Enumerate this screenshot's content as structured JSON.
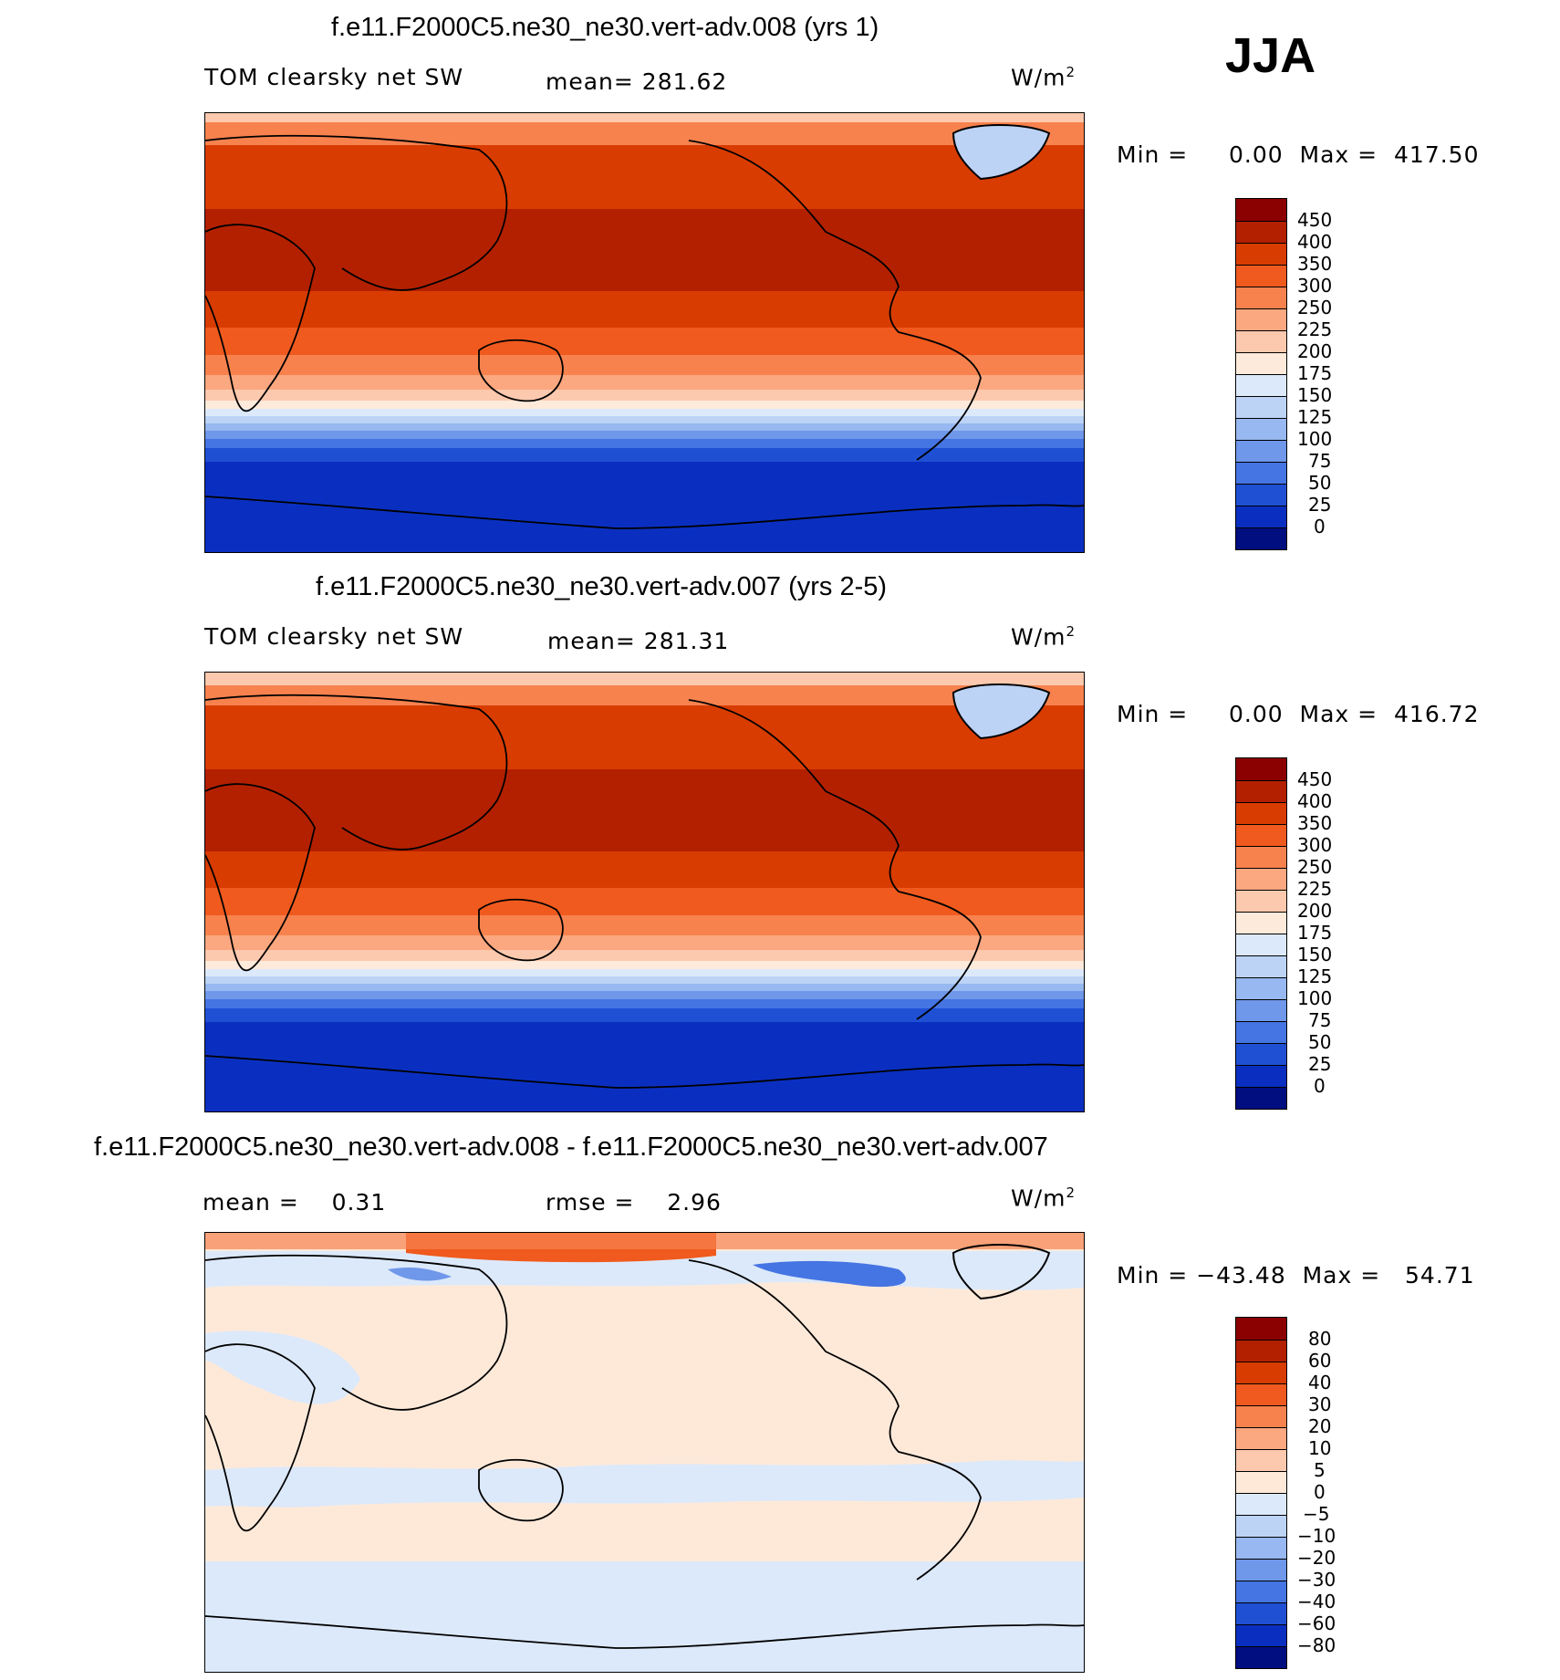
{
  "season": "JJA",
  "panels": [
    {
      "title": "f.e11.F2000C5.ne30_ne30.vert-adv.008 (yrs 1)",
      "variable": "TOM clearsky net SW",
      "stat1": "mean= 281.62",
      "stat2": "",
      "units_base": "W/m",
      "units_exp": "2",
      "minmax": "Min =     0.00  Max =  417.50",
      "colorbar": {
        "levels": [
          "450",
          "400",
          "350",
          "300",
          "250",
          "225",
          "200",
          "175",
          "150",
          "125",
          "100",
          "75",
          "50",
          "25",
          "0"
        ],
        "colors": [
          "#8b0000",
          "#b32000",
          "#d93c00",
          "#f05a1e",
          "#f7824e",
          "#fba77f",
          "#fdc9ae",
          "#feeadb",
          "#dce9fa",
          "#bcd3f6",
          "#97b8f0",
          "#6f97ea",
          "#4574e3",
          "#1f50d4",
          "#0a2fc0",
          "#061c96",
          "#000e80"
        ]
      }
    },
    {
      "title": "f.e11.F2000C5.ne30_ne30.vert-adv.007 (yrs 2-5)",
      "variable": "TOM clearsky net SW",
      "stat1": "mean= 281.31",
      "stat2": "",
      "units_base": "W/m",
      "units_exp": "2",
      "minmax": "Min =     0.00  Max =  416.72",
      "colorbar": {
        "levels": [
          "450",
          "400",
          "350",
          "300",
          "250",
          "225",
          "200",
          "175",
          "150",
          "125",
          "100",
          "75",
          "50",
          "25",
          "0"
        ],
        "colors": [
          "#8b0000",
          "#b32000",
          "#d93c00",
          "#f05a1e",
          "#f7824e",
          "#fba77f",
          "#fdc9ae",
          "#feeadb",
          "#dce9fa",
          "#bcd3f6",
          "#97b8f0",
          "#6f97ea",
          "#4574e3",
          "#1f50d4",
          "#0a2fc0",
          "#061c96",
          "#000e80"
        ]
      }
    },
    {
      "title": "f.e11.F2000C5.ne30_ne30.vert-adv.008 - f.e11.F2000C5.ne30_ne30.vert-adv.007",
      "variable": "",
      "stat1": "mean =    0.31",
      "stat2": "rmse =    2.96",
      "units_base": "W/m",
      "units_exp": "2",
      "minmax": "Min = −43.48  Max =   54.71",
      "colorbar": {
        "levels": [
          "80",
          "60",
          "40",
          "30",
          "20",
          "10",
          "5",
          "0",
          "−5",
          "−10",
          "−20",
          "−30",
          "−40",
          "−60",
          "−80"
        ],
        "colors": [
          "#8b0000",
          "#b32000",
          "#d93c00",
          "#f05a1e",
          "#f7824e",
          "#fba77f",
          "#fdc9ae",
          "#fee9d9",
          "#dce9fa",
          "#bcd3f6",
          "#97b8f0",
          "#6f97ea",
          "#4574e3",
          "#1f50d4",
          "#0a2fc0",
          "#061c96",
          "#000e80"
        ]
      }
    }
  ]
}
